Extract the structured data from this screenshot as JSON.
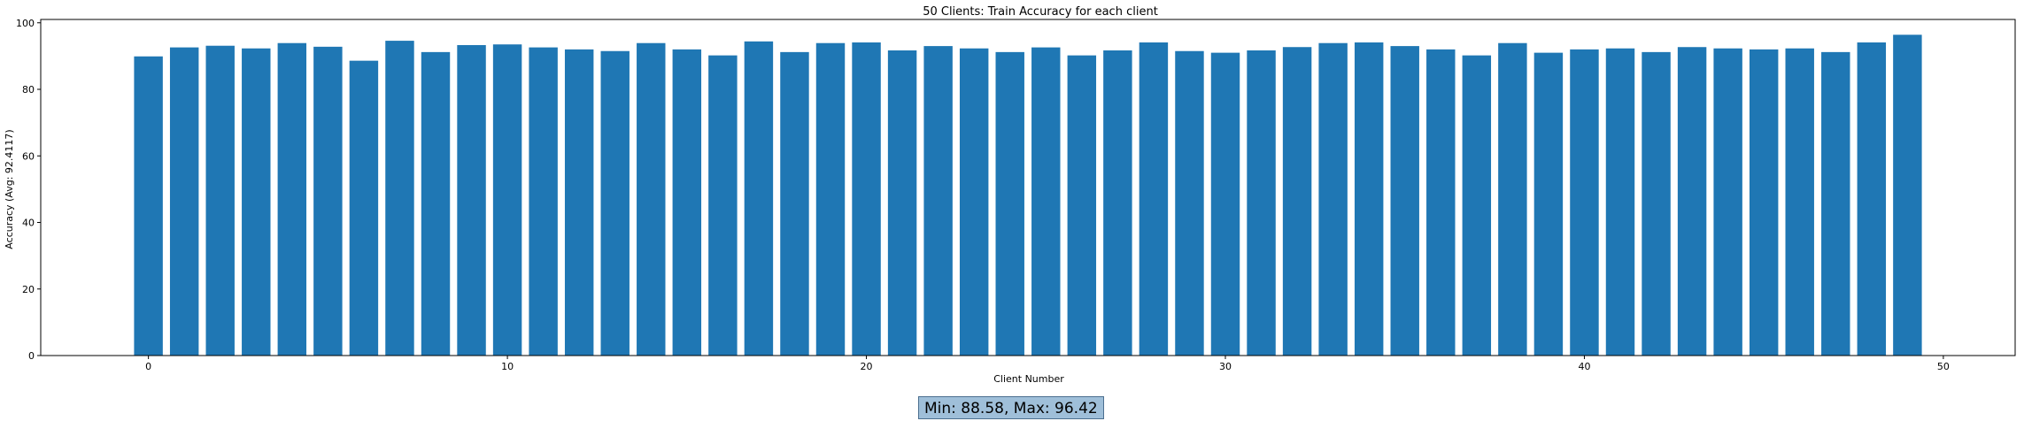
{
  "chart_data": {
    "type": "bar",
    "title": "50 Clients: Train Accuracy for each client",
    "xlabel": "Client Number",
    "ylabel": "Accuracy (Avg: 92.4117)",
    "x": [
      0,
      1,
      2,
      3,
      4,
      5,
      6,
      7,
      8,
      9,
      10,
      11,
      12,
      13,
      14,
      15,
      16,
      17,
      18,
      19,
      20,
      21,
      22,
      23,
      24,
      25,
      26,
      27,
      28,
      29,
      30,
      31,
      32,
      33,
      34,
      35,
      36,
      37,
      38,
      39,
      40,
      41,
      42,
      43,
      44,
      45,
      46,
      47,
      48,
      49
    ],
    "values": [
      89.9,
      92.6,
      93.1,
      92.3,
      93.9,
      92.8,
      88.6,
      94.6,
      91.2,
      93.3,
      93.5,
      92.6,
      92.0,
      91.5,
      93.9,
      92.0,
      90.2,
      94.4,
      91.2,
      93.9,
      94.1,
      91.7,
      93.0,
      92.3,
      91.2,
      92.6,
      90.2,
      91.7,
      94.1,
      91.5,
      91.0,
      91.7,
      92.7,
      93.9,
      94.1,
      93.0,
      92.0,
      90.2,
      93.9,
      91.0,
      92.0,
      92.3,
      91.2,
      92.7,
      92.3,
      92.0,
      92.3,
      91.2,
      94.1,
      96.4
    ],
    "xlim": [
      -3,
      52
    ],
    "ylim": [
      0,
      101
    ],
    "xticks": [
      0,
      10,
      20,
      30,
      40,
      50
    ],
    "yticks": [
      0,
      20,
      40,
      60,
      80,
      100
    ],
    "bar_color": "#1f77b4",
    "grid": false,
    "annotation": "Min: 88.58, Max: 96.42"
  }
}
